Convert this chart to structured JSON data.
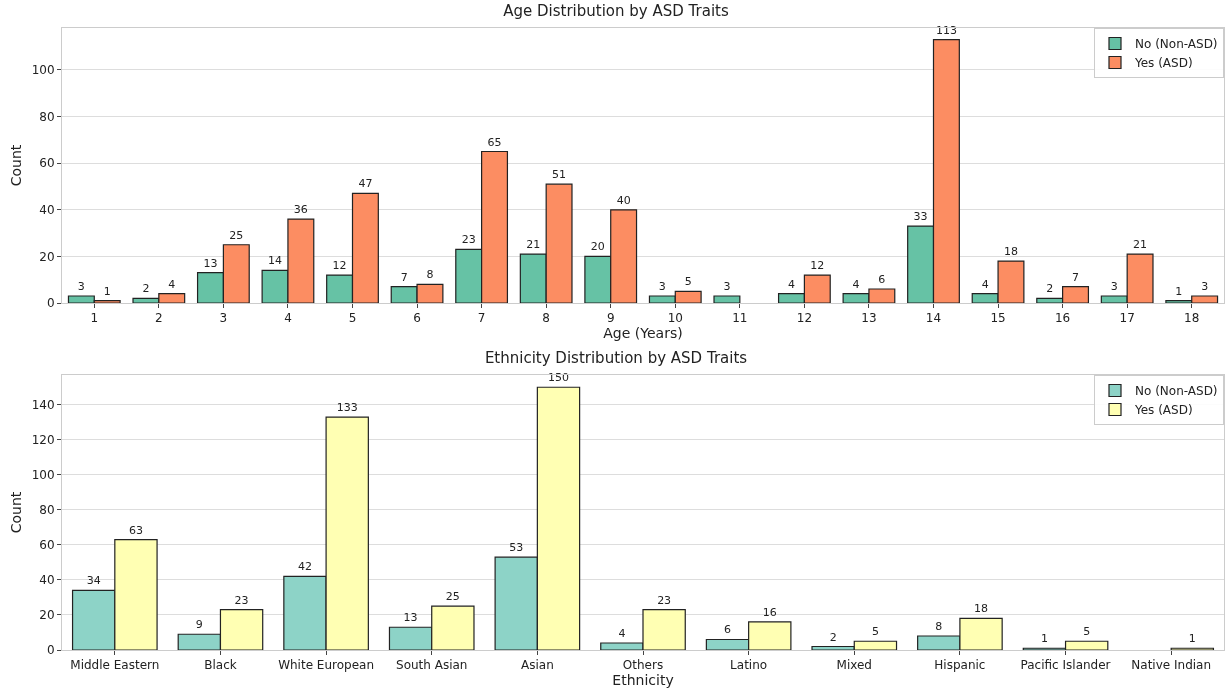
{
  "chart_data": [
    {
      "type": "bar",
      "title": "Age Distribution by ASD Traits",
      "xlabel": "Age (Years)",
      "ylabel": "Count",
      "categories": [
        "1",
        "2",
        "3",
        "4",
        "5",
        "6",
        "7",
        "8",
        "9",
        "10",
        "11",
        "12",
        "13",
        "14",
        "15",
        "16",
        "17",
        "18"
      ],
      "series": [
        {
          "name": "No (Non-ASD)",
          "color": "#66c2a5",
          "values": [
            3,
            2,
            13,
            14,
            12,
            7,
            23,
            21,
            20,
            3,
            3,
            4,
            4,
            33,
            4,
            2,
            3,
            1
          ]
        },
        {
          "name": "Yes (ASD)",
          "color": "#fc8d62",
          "values": [
            1,
            4,
            25,
            36,
            47,
            8,
            65,
            51,
            40,
            5,
            null,
            12,
            6,
            113,
            18,
            7,
            21,
            3
          ]
        }
      ],
      "ylim": [
        0,
        118
      ],
      "yticks": [
        0,
        20,
        40,
        60,
        80,
        100
      ],
      "grid": "y",
      "legend": "top right",
      "data_labels": true
    },
    {
      "type": "bar",
      "title": "Ethnicity Distribution by ASD Traits",
      "xlabel": "Ethnicity",
      "ylabel": "Count",
      "categories": [
        "Middle Eastern",
        "Black",
        "White European",
        "South Asian",
        "Asian",
        "Others",
        "Latino",
        "Mixed",
        "Hispanic",
        "Pacific Islander",
        "Native Indian"
      ],
      "series": [
        {
          "name": "No (Non-ASD)",
          "color": "#8dd3c7",
          "values": [
            34,
            9,
            42,
            13,
            53,
            4,
            6,
            2,
            8,
            1,
            null
          ]
        },
        {
          "name": "Yes (ASD)",
          "color": "#ffffb3",
          "values": [
            63,
            23,
            133,
            25,
            150,
            23,
            16,
            5,
            18,
            5,
            1
          ]
        }
      ],
      "ylim": [
        0,
        157
      ],
      "yticks": [
        0,
        20,
        40,
        60,
        80,
        100,
        120,
        140
      ],
      "grid": "y",
      "legend": "top right",
      "data_labels": true
    }
  ]
}
